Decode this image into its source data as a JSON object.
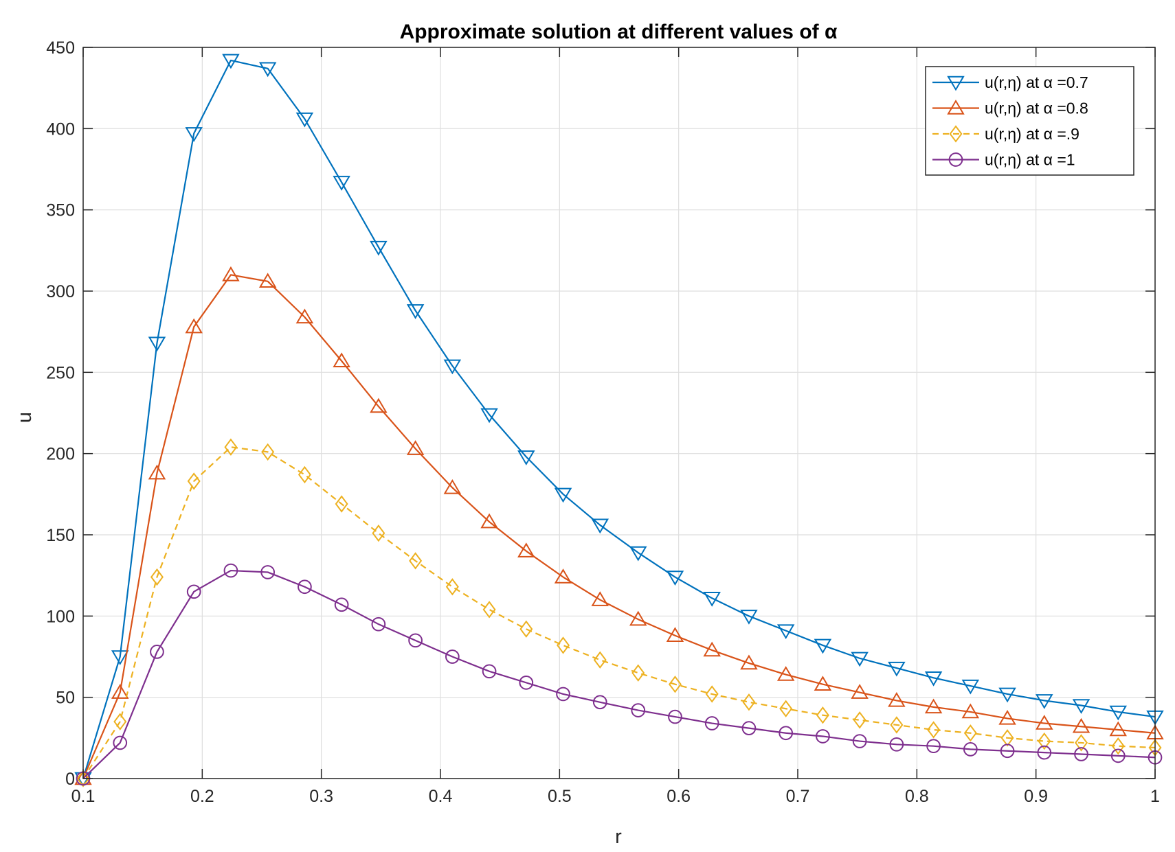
{
  "chart_data": {
    "type": "line",
    "title": "Approximate solution at different values of α",
    "xlabel": "r",
    "ylabel": "u",
    "xlim": [
      0.1,
      1
    ],
    "ylim": [
      0,
      450
    ],
    "xticks": [
      "0.1",
      "0.2",
      "0.3",
      "0.4",
      "0.5",
      "0.6",
      "0.7",
      "0.8",
      "0.9",
      "1"
    ],
    "yticks": [
      "0",
      "50",
      "100",
      "150",
      "200",
      "250",
      "300",
      "350",
      "400",
      "450"
    ],
    "grid": true,
    "legend_position": "top-right",
    "x": [
      0.1,
      0.131,
      0.162,
      0.193,
      0.224,
      0.255,
      0.286,
      0.317,
      0.348,
      0.379,
      0.41,
      0.441,
      0.472,
      0.503,
      0.534,
      0.566,
      0.597,
      0.628,
      0.659,
      0.69,
      0.721,
      0.752,
      0.783,
      0.814,
      0.845,
      0.876,
      0.907,
      0.938,
      0.969,
      1.0
    ],
    "series": [
      {
        "name": "u(r,η) at α =0.7",
        "color": "#0072BD",
        "marker": "triangle-down",
        "line_style": "solid",
        "values": [
          0,
          75,
          268,
          397,
          442,
          437,
          406,
          367,
          327,
          288,
          254,
          224,
          198,
          175,
          156,
          139,
          124,
          111,
          100,
          91,
          82,
          74,
          68,
          62,
          57,
          52,
          48,
          45,
          41,
          38
        ]
      },
      {
        "name": "u(r,η) at α =0.8",
        "color": "#D95319",
        "marker": "triangle-up",
        "line_style": "solid",
        "values": [
          0,
          53,
          188,
          278,
          310,
          306,
          284,
          257,
          229,
          203,
          179,
          158,
          140,
          124,
          110,
          98,
          88,
          79,
          71,
          64,
          58,
          53,
          48,
          44,
          41,
          37,
          34,
          32,
          30,
          28
        ]
      },
      {
        "name": "u(r,η) at α =.9",
        "color": "#EDB120",
        "marker": "diamond",
        "line_style": "dashed",
        "values": [
          0,
          35,
          124,
          183,
          204,
          201,
          187,
          169,
          151,
          134,
          118,
          104,
          92,
          82,
          73,
          65,
          58,
          52,
          47,
          43,
          39,
          36,
          33,
          30,
          28,
          25,
          23,
          22,
          20,
          19
        ]
      },
      {
        "name": "u(r,η) at α =1",
        "color": "#7E2F8E",
        "marker": "circle",
        "line_style": "solid",
        "values": [
          0,
          22,
          78,
          115,
          128,
          127,
          118,
          107,
          95,
          85,
          75,
          66,
          59,
          52,
          47,
          42,
          38,
          34,
          31,
          28,
          26,
          23,
          21,
          20,
          18,
          17,
          16,
          15,
          14,
          13
        ]
      }
    ]
  }
}
